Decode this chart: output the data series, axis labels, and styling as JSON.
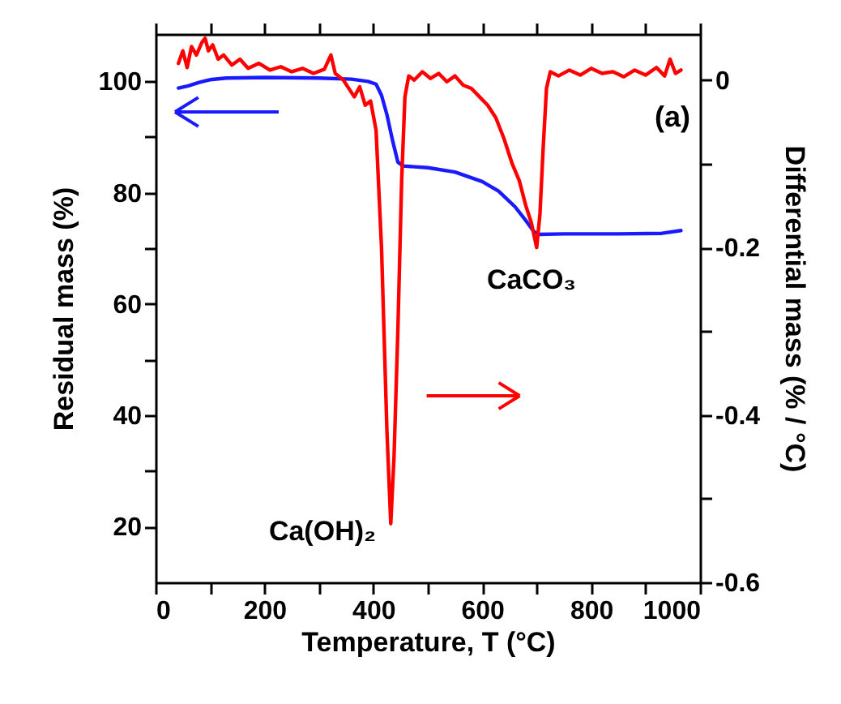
{
  "chart_data": {
    "type": "line",
    "xlabel": "Temperature, T (°C)",
    "ylabel": "Residual mass (%)",
    "y2label": "Differential mass (% / °C)",
    "xlim": [
      0,
      1000
    ],
    "xticks": [
      0,
      {
        "value": 100,
        "label": null
      },
      200,
      {
        "value": 300,
        "label": null
      },
      400,
      {
        "value": 500,
        "label": null
      },
      600,
      {
        "value": 700,
        "label": null
      },
      800,
      {
        "value": 900,
        "label": null
      },
      1000
    ],
    "ylim": [
      10,
      108.5
    ],
    "yticks": [
      20,
      {
        "value": 30,
        "label": null
      },
      40,
      {
        "value": 50,
        "label": null
      },
      60,
      {
        "value": 70,
        "label": null
      },
      80,
      {
        "value": 90,
        "label": null
      },
      100
    ],
    "y2lim": [
      -0.6,
      0.055
    ],
    "y2ticks": [
      -0.6,
      {
        "value": -0.5,
        "label": null
      },
      -0.4,
      {
        "value": -0.3,
        "label": null
      },
      -0.2,
      {
        "value": -0.1,
        "label": null
      },
      0
    ],
    "annotations": [
      "(a)",
      "CaCO₃",
      "Ca(OH)₂"
    ],
    "series": [
      {
        "color": "#1a1aff",
        "x": [
          42,
          60,
          80,
          100,
          130,
          200,
          300,
          360,
          390,
          405,
          415,
          425,
          435,
          445,
          455,
          500,
          550,
          600,
          630,
          660,
          680,
          695,
          705,
          750,
          850,
          930,
          965
        ],
        "values": [
          98.8,
          99.2,
          99.8,
          100.3,
          100.6,
          100.7,
          100.6,
          100.4,
          100.0,
          99.5,
          97.5,
          94,
          89.5,
          85.5,
          84.8,
          84.5,
          83.7,
          82,
          80.3,
          77.5,
          75,
          73,
          72.5,
          72.6,
          72.6,
          72.7,
          73.2
        ]
      },
      {
        "color": "#ff0000",
        "axis": "y2",
        "x": [
          42,
          50,
          58,
          66,
          75,
          85,
          91,
          97,
          105,
          115,
          125,
          140,
          155,
          170,
          190,
          210,
          230,
          250,
          270,
          290,
          310,
          322,
          330,
          345,
          355,
          365,
          375,
          385,
          395,
          405,
          415,
          425,
          432,
          438,
          445,
          452,
          458,
          465,
          475,
          490,
          505,
          520,
          535,
          550,
          565,
          580,
          595,
          610,
          625,
          640,
          655,
          668,
          680,
          690,
          700,
          706,
          712,
          718,
          725,
          740,
          760,
          780,
          800,
          820,
          840,
          860,
          880,
          900,
          920,
          935,
          945,
          955,
          965
        ],
        "values": [
          0.02,
          0.035,
          0.015,
          0.04,
          0.03,
          0.045,
          0.05,
          0.035,
          0.042,
          0.025,
          0.03,
          0.018,
          0.025,
          0.014,
          0.02,
          0.012,
          0.016,
          0.01,
          0.014,
          0.008,
          0.013,
          0.03,
          0.008,
          0.0,
          -0.01,
          -0.02,
          -0.008,
          -0.03,
          -0.025,
          -0.06,
          -0.2,
          -0.42,
          -0.53,
          -0.45,
          -0.3,
          -0.12,
          -0.02,
          0.005,
          0.0,
          0.01,
          0.002,
          0.008,
          -0.002,
          0.005,
          -0.006,
          -0.01,
          -0.02,
          -0.03,
          -0.045,
          -0.07,
          -0.1,
          -0.12,
          -0.15,
          -0.17,
          -0.2,
          -0.16,
          -0.08,
          -0.01,
          0.01,
          0.005,
          0.012,
          0.006,
          0.014,
          0.008,
          0.01,
          0.004,
          0.012,
          0.006,
          0.015,
          0.005,
          0.025,
          0.008,
          0.012
        ]
      }
    ]
  }
}
